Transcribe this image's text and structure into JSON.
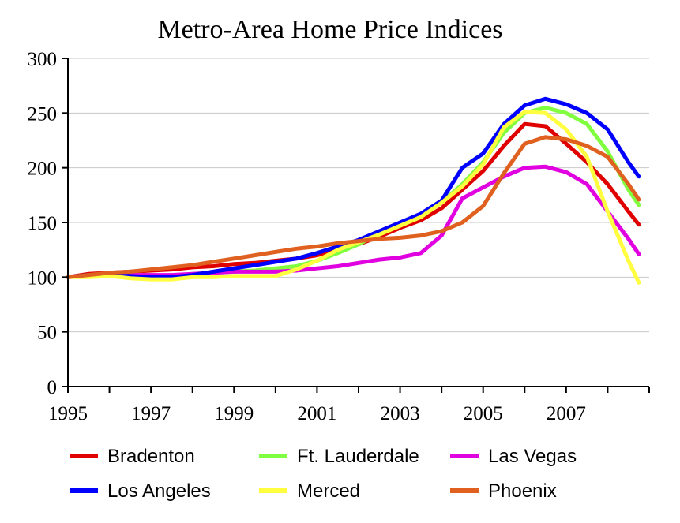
{
  "chart_data": {
    "type": "line",
    "title": "Metro-Area Home Price Indices",
    "xlabel": "",
    "ylabel": "",
    "xlim": [
      1995,
      2009
    ],
    "ylim": [
      0,
      300
    ],
    "y_ticks": [
      0,
      50,
      100,
      150,
      200,
      250,
      300
    ],
    "x_ticks": [
      1995,
      1997,
      1999,
      2001,
      2003,
      2005,
      2007
    ],
    "grid": true,
    "legend_position": "bottom",
    "x": [
      1995,
      1995.5,
      1996,
      1996.5,
      1997,
      1997.5,
      1998,
      1998.5,
      1999,
      1999.5,
      2000,
      2000.5,
      2001,
      2001.5,
      2002,
      2002.5,
      2003,
      2003.5,
      2004,
      2004.5,
      2005,
      2005.5,
      2006,
      2006.5,
      2007,
      2007.5,
      2008,
      2008.5,
      2008.75
    ],
    "series": [
      {
        "name": "Bradenton",
        "color": "#e00000",
        "values": [
          100,
          103,
          104,
          105,
          106,
          107,
          109,
          110,
          112,
          113,
          115,
          117,
          120,
          125,
          130,
          137,
          145,
          152,
          163,
          180,
          197,
          220,
          240,
          238,
          222,
          205,
          185,
          160,
          148
        ]
      },
      {
        "name": "Ft. Lauderdale",
        "color": "#80ff40",
        "values": [
          100,
          102,
          103,
          102,
          102,
          101,
          103,
          104,
          105,
          106,
          108,
          110,
          115,
          122,
          130,
          140,
          148,
          157,
          168,
          185,
          205,
          232,
          250,
          255,
          250,
          240,
          215,
          180,
          166
        ]
      },
      {
        "name": "Las Vegas",
        "color": "#e000e0",
        "values": [
          100,
          101,
          102,
          102,
          102,
          102,
          103,
          104,
          105,
          105,
          105,
          106,
          108,
          110,
          113,
          116,
          118,
          122,
          138,
          172,
          182,
          192,
          200,
          201,
          196,
          185,
          160,
          135,
          121
        ]
      },
      {
        "name": "Los Angeles",
        "color": "#0000ff",
        "values": [
          100,
          102,
          102,
          101,
          100,
          100,
          102,
          105,
          108,
          111,
          114,
          117,
          122,
          128,
          134,
          142,
          150,
          158,
          170,
          200,
          213,
          240,
          257,
          263,
          258,
          250,
          235,
          205,
          192
        ]
      },
      {
        "name": "Merced",
        "color": "#ffff40",
        "values": [
          100,
          100,
          101,
          99,
          98,
          98,
          100,
          100,
          101,
          101,
          101,
          107,
          115,
          125,
          132,
          139,
          147,
          155,
          168,
          183,
          203,
          237,
          251,
          250,
          235,
          210,
          160,
          115,
          95
        ]
      },
      {
        "name": "Phoenix",
        "color": "#e06020",
        "values": [
          100,
          102,
          104,
          105,
          107,
          109,
          111,
          114,
          117,
          120,
          123,
          126,
          128,
          131,
          133,
          135,
          136,
          138,
          142,
          150,
          165,
          195,
          222,
          228,
          226,
          220,
          210,
          185,
          171
        ]
      }
    ]
  }
}
